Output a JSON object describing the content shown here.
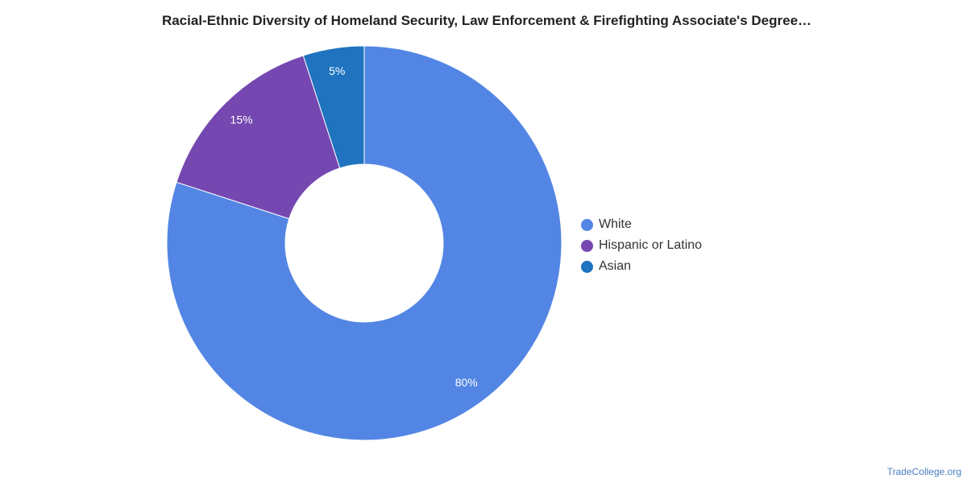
{
  "chart_data": {
    "type": "pie",
    "title": "Racial-Ethnic Diversity of Homeland Security, Law Enforcement & Firefighting Associate's Degree…",
    "donut": true,
    "legend_position": "right",
    "slices": [
      {
        "name": "White",
        "value": 80,
        "label": "80%",
        "color": "#5386e4"
      },
      {
        "name": "Hispanic or Latino",
        "value": 15,
        "label": "15%",
        "color": "#7448b0"
      },
      {
        "name": "Asian",
        "value": 5,
        "label": "5%",
        "color": "#1f73bf"
      }
    ]
  },
  "footer": {
    "source": "TradeCollege.org"
  }
}
